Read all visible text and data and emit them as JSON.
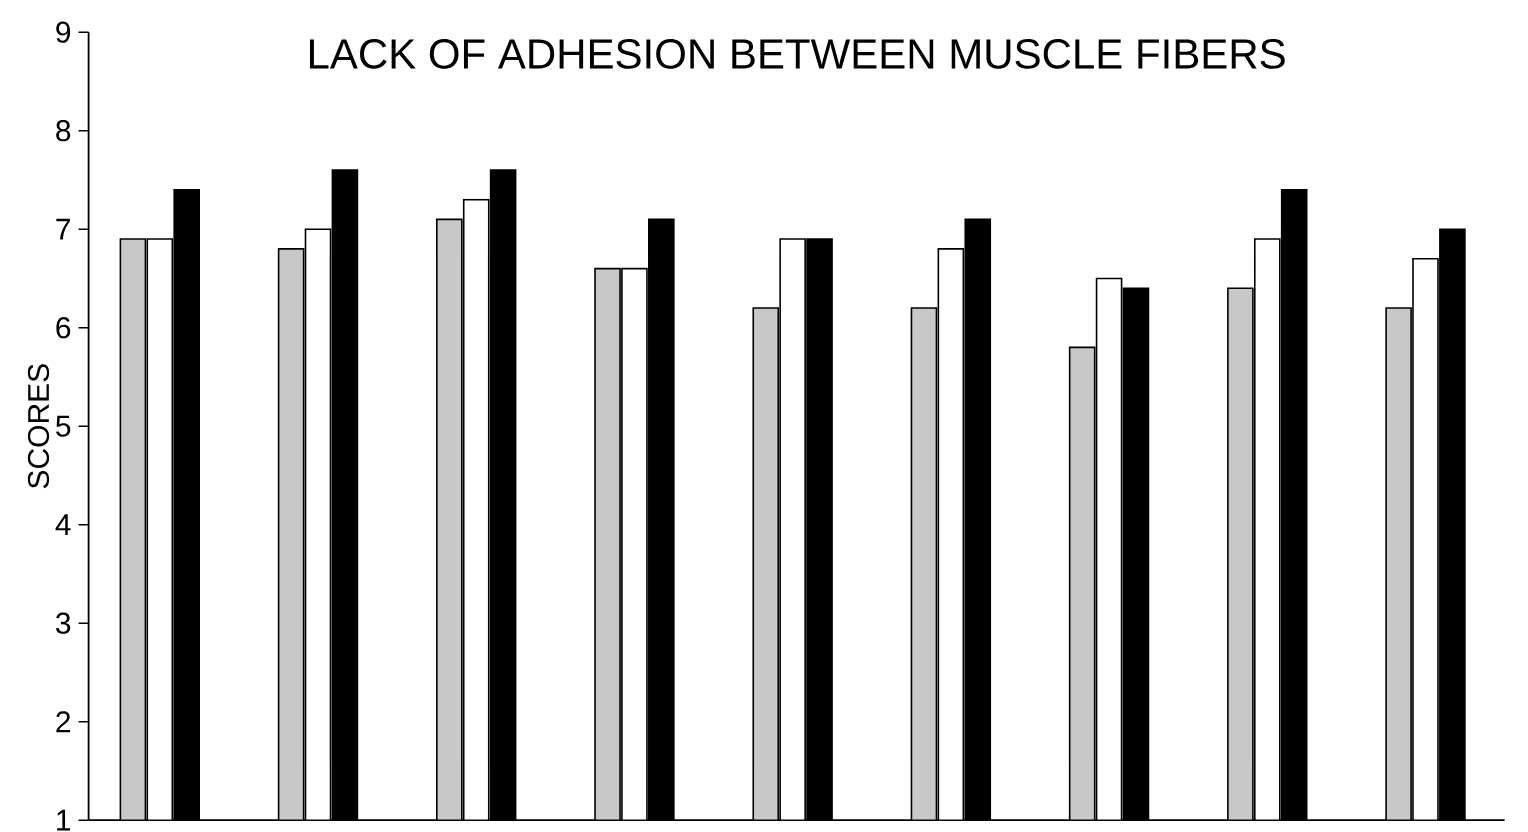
{
  "chart_data": {
    "type": "bar",
    "title": "LACK OF ADHESION BETWEEN MUSCLE FIBERS",
    "ylabel": "SCORES",
    "categories": [
      null,
      null,
      null,
      null,
      null,
      null,
      null,
      null,
      null
    ],
    "series": [
      {
        "color": "#c8c8c8",
        "values": [
          6.9,
          6.8,
          7.1,
          6.6,
          6.2,
          6.2,
          5.8,
          6.4,
          6.2
        ]
      },
      {
        "color": "#ffffff",
        "values": [
          6.9,
          7.0,
          7.3,
          6.6,
          6.9,
          6.8,
          6.5,
          6.9,
          6.7
        ]
      },
      {
        "color": "#000000",
        "values": [
          7.4,
          7.6,
          7.6,
          7.1,
          6.9,
          7.1,
          6.4,
          7.4,
          7.0
        ]
      }
    ],
    "ylim": [
      1,
      9
    ],
    "yticks": [
      1,
      2,
      3,
      4,
      5,
      6,
      7,
      8,
      9
    ],
    "grid": false
  }
}
